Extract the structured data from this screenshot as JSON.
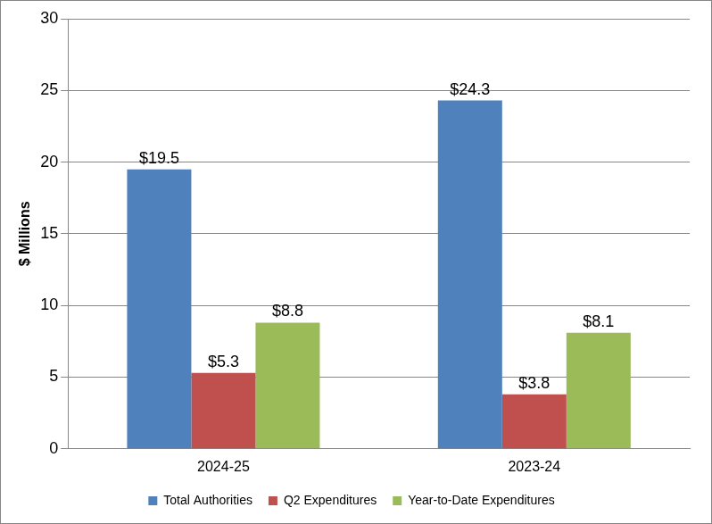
{
  "chart_data": {
    "type": "bar",
    "y_label": "$ Millions",
    "categories": [
      "2024-25",
      "2023-24"
    ],
    "series": [
      {
        "name": "Total Authorities",
        "color": "#4f81bd",
        "values": [
          19.5,
          24.3
        ],
        "value_labels": [
          "$19.5",
          "$24.3"
        ]
      },
      {
        "name": "Q2 Expenditures",
        "color": "#c0504d",
        "values": [
          5.3,
          3.8
        ],
        "value_labels": [
          "$5.3",
          "$3.8"
        ]
      },
      {
        "name": "Year-to-Date Expenditures",
        "color": "#9bbb59",
        "values": [
          8.8,
          8.1
        ],
        "value_labels": [
          "$8.8",
          "$8.1"
        ]
      }
    ],
    "ylim": [
      0,
      30
    ],
    "yticks": [
      0,
      5,
      10,
      15,
      20,
      25,
      30
    ],
    "grid": true,
    "legend": "bottom",
    "data_labels": true
  }
}
